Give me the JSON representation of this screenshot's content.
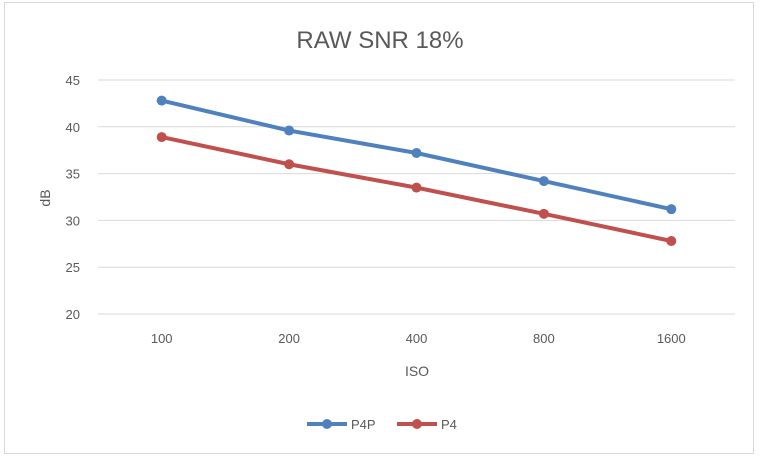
{
  "chart_data": {
    "type": "line",
    "title": "RAW SNR 18%",
    "xlabel": "ISO",
    "ylabel": "dB",
    "categories": [
      "100",
      "200",
      "400",
      "800",
      "1600"
    ],
    "yticks": [
      "20",
      "25",
      "30",
      "35",
      "40",
      "45"
    ],
    "ylim": [
      20,
      45
    ],
    "grid": true,
    "legend_position": "bottom",
    "series": [
      {
        "name": "P4P",
        "color": "#4f81bd",
        "values": [
          42.8,
          39.6,
          37.2,
          34.2,
          31.2
        ]
      },
      {
        "name": "P4",
        "color": "#c0504d",
        "values": [
          38.9,
          36.0,
          33.5,
          30.7,
          27.8
        ]
      }
    ]
  }
}
